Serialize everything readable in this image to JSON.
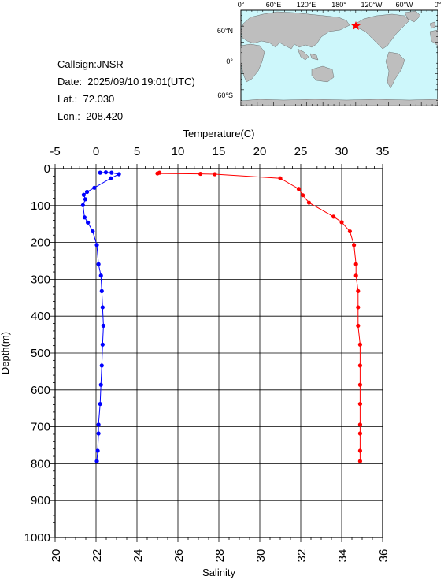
{
  "info": {
    "callsign": "Callsign:JNSR",
    "date": "Date:  2025/09/10 19:01(UTC)",
    "lat": "Lat.:  72.030",
    "lon": "Lon.:  208.420"
  },
  "map": {
    "top_ticks": [
      "0°",
      "60°E",
      "120°E",
      "180°",
      "120°W",
      "60°W",
      "0°"
    ],
    "left_ticks": [
      "60°N",
      "0°",
      "60°S"
    ],
    "colors": {
      "ocean": "#cdf7fb",
      "land": "#bebebe",
      "marker": "#ff0000"
    }
  },
  "chart_data": {
    "type": "line",
    "xlabel_top": "Temperature(C)",
    "xlabel_bottom": "Salinity",
    "ylabel": "Depth(m)",
    "temp_range": [
      -5,
      35
    ],
    "sal_range": [
      20,
      36
    ],
    "depth_range": [
      0,
      1000
    ],
    "y_inverted": true,
    "grid": true,
    "temp_ticks": [
      "-5",
      "0",
      "5",
      "10",
      "15",
      "20",
      "25",
      "30",
      "35"
    ],
    "sal_ticks": [
      "20",
      "22",
      "24",
      "26",
      "28",
      "30",
      "32",
      "34",
      "36"
    ],
    "depth_ticks": [
      "0",
      "100",
      "200",
      "300",
      "400",
      "500",
      "600",
      "700",
      "800",
      "900",
      "1000"
    ],
    "series": [
      {
        "name": "Temperature",
        "axis": "top",
        "color": "#0000ff",
        "points": [
          {
            "x": 0.5,
            "depth": 11
          },
          {
            "x": 1.2,
            "depth": 10
          },
          {
            "x": 1.9,
            "depth": 11
          },
          {
            "x": 2.8,
            "depth": 15
          },
          {
            "x": 1.8,
            "depth": 26
          },
          {
            "x": -0.2,
            "depth": 52
          },
          {
            "x": -1.1,
            "depth": 63
          },
          {
            "x": -1.5,
            "depth": 71
          },
          {
            "x": -1.3,
            "depth": 83
          },
          {
            "x": -1.6,
            "depth": 99
          },
          {
            "x": -1.4,
            "depth": 132
          },
          {
            "x": -1.0,
            "depth": 146
          },
          {
            "x": -0.4,
            "depth": 170
          },
          {
            "x": 0.1,
            "depth": 207
          },
          {
            "x": 0.3,
            "depth": 259
          },
          {
            "x": 0.6,
            "depth": 290
          },
          {
            "x": 0.7,
            "depth": 332
          },
          {
            "x": 0.8,
            "depth": 376
          },
          {
            "x": 0.9,
            "depth": 426
          },
          {
            "x": 0.8,
            "depth": 477
          },
          {
            "x": 0.7,
            "depth": 534
          },
          {
            "x": 0.6,
            "depth": 586
          },
          {
            "x": 0.5,
            "depth": 638
          },
          {
            "x": 0.3,
            "depth": 694
          },
          {
            "x": 0.3,
            "depth": 718
          },
          {
            "x": 0.2,
            "depth": 765
          },
          {
            "x": 0.1,
            "depth": 793
          }
        ]
      },
      {
        "name": "Salinity",
        "axis": "bottom",
        "color": "#ff0000",
        "points": [
          {
            "x": 25.1,
            "depth": 11
          },
          {
            "x": 25.0,
            "depth": 13
          },
          {
            "x": 27.1,
            "depth": 14
          },
          {
            "x": 27.8,
            "depth": 15
          },
          {
            "x": 31.0,
            "depth": 26
          },
          {
            "x": 31.9,
            "depth": 55
          },
          {
            "x": 32.1,
            "depth": 72
          },
          {
            "x": 32.4,
            "depth": 92
          },
          {
            "x": 33.6,
            "depth": 130
          },
          {
            "x": 34.0,
            "depth": 145
          },
          {
            "x": 34.4,
            "depth": 170
          },
          {
            "x": 34.6,
            "depth": 207
          },
          {
            "x": 34.7,
            "depth": 259
          },
          {
            "x": 34.7,
            "depth": 290
          },
          {
            "x": 34.8,
            "depth": 332
          },
          {
            "x": 34.8,
            "depth": 376
          },
          {
            "x": 34.8,
            "depth": 426
          },
          {
            "x": 34.9,
            "depth": 477
          },
          {
            "x": 34.9,
            "depth": 534
          },
          {
            "x": 34.9,
            "depth": 586
          },
          {
            "x": 34.9,
            "depth": 638
          },
          {
            "x": 34.9,
            "depth": 694
          },
          {
            "x": 34.9,
            "depth": 718
          },
          {
            "x": 34.9,
            "depth": 765
          },
          {
            "x": 34.9,
            "depth": 793
          }
        ]
      }
    ]
  }
}
